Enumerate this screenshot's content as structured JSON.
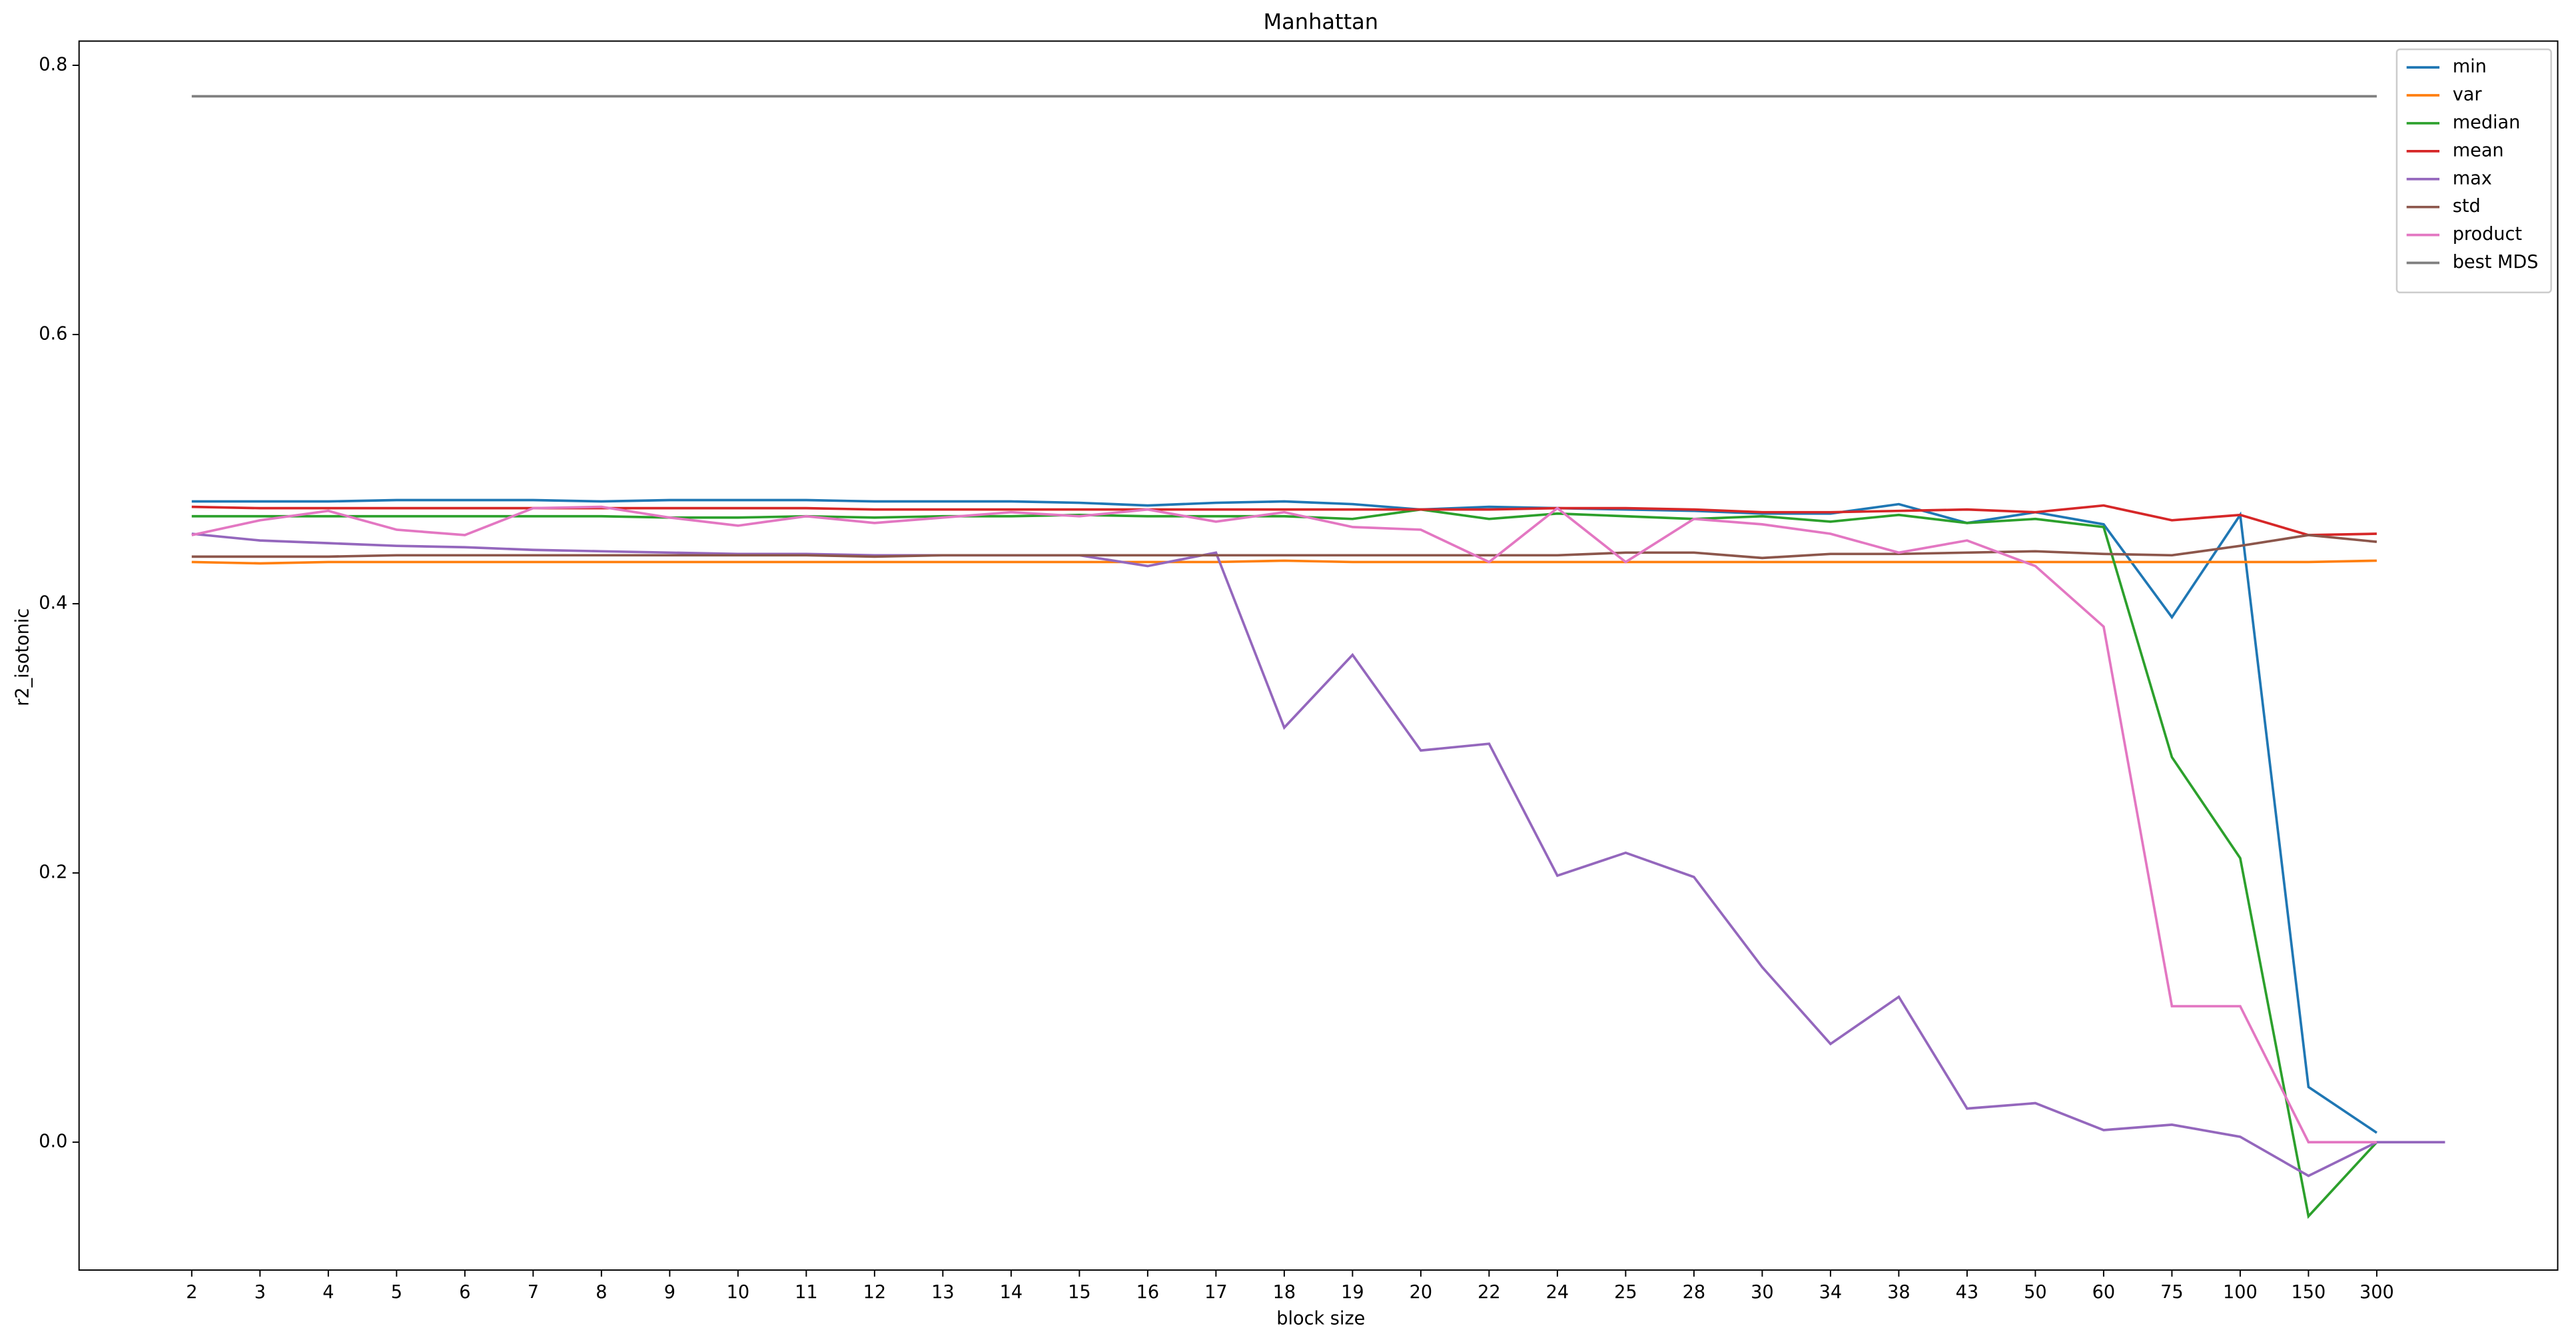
{
  "chart_data": {
    "type": "line",
    "title": "Manhattan",
    "x_label": "block size",
    "y_label": "r2_isotonic",
    "categories": [
      "2",
      "3",
      "4",
      "5",
      "6",
      "7",
      "8",
      "9",
      "10",
      "11",
      "12",
      "13",
      "14",
      "15",
      "16",
      "17",
      "18",
      "19",
      "20",
      "22",
      "24",
      "25",
      "28",
      "30",
      "34",
      "38",
      "43",
      "50",
      "60",
      "75",
      "100",
      "150",
      "300",
      null
    ],
    "ylim": [
      -0.095,
      0.818
    ],
    "yticks": [
      {
        "value": 0,
        "label": "0.0"
      },
      0.2,
      0.4,
      0.6,
      0.8
    ],
    "legend": "upper right",
    "series": [
      {
        "name": "min",
        "color": "#1f77b4",
        "values": [
          0.476,
          0.476,
          0.476,
          0.477,
          0.477,
          0.477,
          0.476,
          0.477,
          0.477,
          0.477,
          0.476,
          0.476,
          0.476,
          0.475,
          0.473,
          0.475,
          0.476,
          0.474,
          0.47,
          0.472,
          0.471,
          0.47,
          0.469,
          0.467,
          0.467,
          0.474,
          0.46,
          0.468,
          0.459,
          0.39,
          0.466,
          0.041,
          0.007,
          null
        ]
      },
      {
        "name": "var",
        "color": "#ff7f0e",
        "values": [
          0.431,
          0.43,
          0.431,
          0.431,
          0.431,
          0.431,
          0.431,
          0.431,
          0.431,
          0.431,
          0.431,
          0.431,
          0.431,
          0.431,
          0.431,
          0.431,
          0.432,
          0.431,
          0.431,
          0.431,
          0.431,
          0.431,
          0.431,
          0.431,
          0.431,
          0.431,
          0.431,
          0.431,
          0.431,
          0.431,
          0.431,
          0.431,
          0.432,
          null
        ]
      },
      {
        "name": "median",
        "color": "#2ca02c",
        "values": [
          0.465,
          0.465,
          0.465,
          0.465,
          0.465,
          0.465,
          0.465,
          0.464,
          0.464,
          0.465,
          0.464,
          0.465,
          0.465,
          0.466,
          0.465,
          0.465,
          0.465,
          0.463,
          0.47,
          0.463,
          0.467,
          0.465,
          0.463,
          0.465,
          0.461,
          0.466,
          0.46,
          0.463,
          0.457,
          0.286,
          0.211,
          -0.055,
          0.0,
          null
        ]
      },
      {
        "name": "mean",
        "color": "#d62728",
        "values": [
          0.472,
          0.471,
          0.471,
          0.471,
          0.471,
          0.471,
          0.471,
          0.471,
          0.471,
          0.471,
          0.47,
          0.47,
          0.47,
          0.47,
          0.47,
          0.47,
          0.47,
          0.47,
          0.47,
          0.47,
          0.471,
          0.471,
          0.47,
          0.468,
          0.468,
          0.469,
          0.47,
          0.468,
          0.473,
          0.462,
          0.466,
          0.451,
          0.452,
          null
        ]
      },
      {
        "name": "max",
        "color": "#9467bd",
        "values": [
          0.452,
          0.447,
          0.445,
          0.443,
          0.442,
          0.44,
          0.439,
          0.438,
          0.437,
          0.437,
          0.436,
          0.436,
          0.436,
          0.436,
          0.428,
          0.438,
          0.308,
          0.362,
          0.291,
          0.296,
          0.198,
          0.215,
          0.197,
          0.13,
          0.073,
          0.108,
          0.025,
          0.029,
          0.009,
          0.013,
          0.004,
          -0.025,
          0.0,
          0.0
        ]
      },
      {
        "name": "std",
        "color": "#8c564b",
        "values": [
          0.435,
          0.435,
          0.435,
          0.436,
          0.436,
          0.436,
          0.436,
          0.436,
          0.436,
          0.436,
          0.435,
          0.436,
          0.436,
          0.436,
          0.436,
          0.436,
          0.436,
          0.436,
          0.436,
          0.436,
          0.436,
          0.438,
          0.438,
          0.434,
          0.437,
          0.437,
          0.438,
          0.439,
          0.437,
          0.436,
          0.443,
          0.451,
          0.446,
          null
        ]
      },
      {
        "name": "product",
        "color": "#e377c2",
        "values": [
          0.451,
          0.462,
          0.469,
          0.455,
          0.451,
          0.471,
          0.472,
          0.464,
          0.458,
          0.465,
          0.46,
          0.464,
          0.468,
          0.465,
          0.47,
          0.461,
          0.468,
          0.457,
          0.455,
          0.431,
          0.471,
          0.431,
          0.463,
          0.459,
          0.452,
          0.438,
          0.447,
          0.428,
          0.383,
          0.101,
          0.101,
          0.0,
          0.0,
          null
        ]
      },
      {
        "name": "best MDS",
        "color": "#7f7f7f",
        "values": [
          0.777,
          0.777,
          0.777,
          0.777,
          0.777,
          0.777,
          0.777,
          0.777,
          0.777,
          0.777,
          0.777,
          0.777,
          0.777,
          0.777,
          0.777,
          0.777,
          0.777,
          0.777,
          0.777,
          0.777,
          0.777,
          0.777,
          0.777,
          0.777,
          0.777,
          0.777,
          0.777,
          0.777,
          0.777,
          0.777,
          0.777,
          0.777,
          0.777,
          null
        ]
      }
    ]
  }
}
